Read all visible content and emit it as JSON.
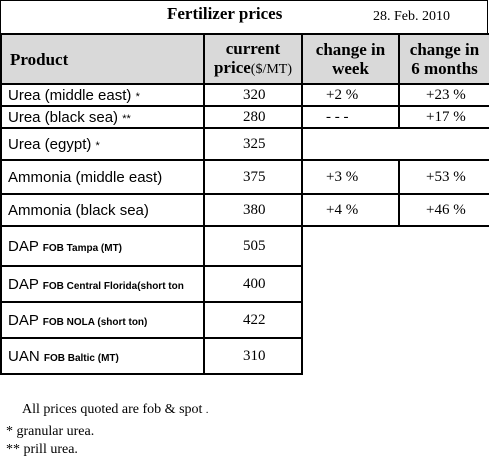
{
  "title": "Fertilizer prices",
  "date": "28. Feb. 2010",
  "headers": {
    "product": "Product",
    "current_price_line1": "current",
    "current_price_line2": "price",
    "current_price_unit": "($/MT)",
    "week_line1": "change in",
    "week_line2": "week",
    "six_months_line1": "change in",
    "six_months_line2": "6 months"
  },
  "rows": [
    {
      "product": "Urea (middle east)",
      "mark": "*",
      "price": "320",
      "week": "+2 %",
      "six_months": "+23 %"
    },
    {
      "product": "Urea (black sea)",
      "mark": "**",
      "price": "280",
      "week": "- - -",
      "six_months": "+17 %"
    },
    {
      "product": "Urea (egypt)",
      "mark": "*",
      "price": "325",
      "week": "",
      "six_months": ""
    },
    {
      "product": "Ammonia (middle east)",
      "price": "375",
      "week": "+3 %",
      "six_months": "+53 %"
    },
    {
      "product": "Ammonia (black sea)",
      "price": "380",
      "week": "+4 %",
      "six_months": "+46 %"
    },
    {
      "product": "DAP",
      "note": "FOB Tampa (MT)",
      "price": "505"
    },
    {
      "product": "DAP",
      "note": "FOB Central Florida(short ton",
      "price": "400"
    },
    {
      "product": "DAP",
      "note": "FOB NOLA (short ton)",
      "price": "422"
    },
    {
      "product": "UAN",
      "note": "FOB Baltic (MT)",
      "price": "310"
    }
  ],
  "footnotes": {
    "all_prices": "All prices quoted are fob & spot",
    "all_prices_dot": ".",
    "granular": "* granular urea.",
    "prill": "** prill urea."
  },
  "colors": {
    "header_background": "#d9d9d9",
    "border": "#000000"
  }
}
